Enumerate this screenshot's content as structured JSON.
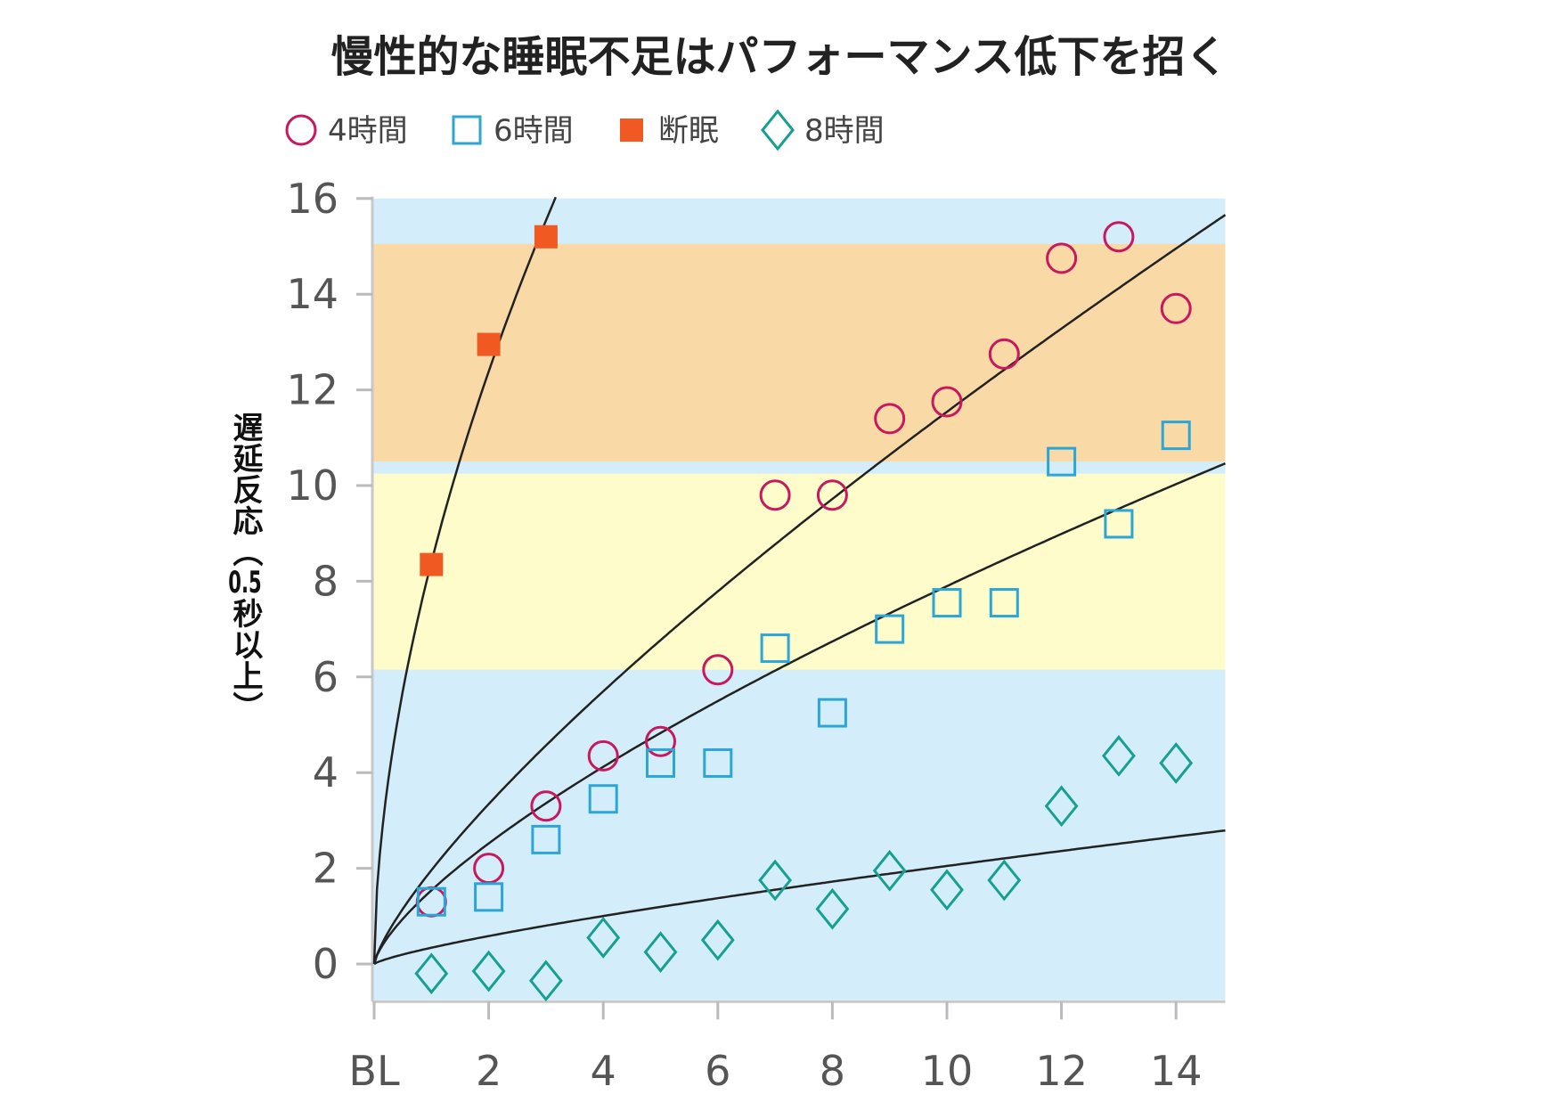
{
  "chart_data": {
    "type": "scatter",
    "title": "慢性的な睡眠不足はパフォーマンス低下を招く",
    "xlabel": "",
    "ylabel": "遅延反応（0.5秒以上）",
    "xlim": [
      0,
      14.86
    ],
    "ylim": [
      -0.75,
      16
    ],
    "x_ticks": [
      {
        "value": 0,
        "label": "BL"
      },
      {
        "value": 2,
        "label": "2"
      },
      {
        "value": 4,
        "label": "4"
      },
      {
        "value": 6,
        "label": "6"
      },
      {
        "value": 8,
        "label": "8"
      },
      {
        "value": 10,
        "label": "10"
      },
      {
        "value": 12,
        "label": "12"
      },
      {
        "value": 14,
        "label": "14"
      }
    ],
    "y_ticks": [
      0,
      2,
      4,
      6,
      8,
      10,
      12,
      14,
      16
    ],
    "legend_position": "top-left",
    "bands": [
      {
        "from": -0.75,
        "to": 16,
        "color": "#d3eefa"
      },
      {
        "from": 10.5,
        "to": 15.05,
        "color": "#f9d9a6"
      },
      {
        "from": 6.15,
        "to": 10.25,
        "color": "#fdfcca"
      }
    ],
    "series": [
      {
        "name": "4時間",
        "marker": "circle",
        "color": "#c8185e",
        "x": [
          1,
          2,
          3,
          4,
          5,
          6,
          7,
          8,
          9,
          10,
          11,
          12,
          13,
          14
        ],
        "y": [
          1.3,
          2.0,
          3.3,
          4.35,
          4.65,
          6.15,
          9.8,
          9.8,
          11.4,
          11.75,
          12.75,
          14.75,
          15.2,
          13.7
        ],
        "fit": {
          "a": 1.96,
          "b": 0.77
        }
      },
      {
        "name": "6時間",
        "marker": "square",
        "color": "#2ba6d6",
        "x": [
          1,
          2,
          3,
          4,
          5,
          6,
          7,
          8,
          9,
          10,
          11,
          12,
          13,
          14
        ],
        "y": [
          1.3,
          1.4,
          2.6,
          3.45,
          4.2,
          4.2,
          6.6,
          5.25,
          7.0,
          7.55,
          7.55,
          10.5,
          9.2,
          11.05
        ],
        "fit": {
          "a": 1.54,
          "b": 0.71
        }
      },
      {
        "name": "断眠",
        "marker": "filled-square",
        "color": "#f05a22",
        "x": [
          1,
          2,
          3
        ],
        "y": [
          8.35,
          12.95,
          15.2
        ],
        "fit": {
          "a": 8.4,
          "b": 0.56
        }
      },
      {
        "name": "8時間",
        "marker": "diamond",
        "color": "#17a08f",
        "x": [
          1,
          2,
          3,
          4,
          5,
          6,
          7,
          8,
          9,
          10,
          11,
          12,
          13,
          14
        ],
        "y": [
          -0.2,
          -0.15,
          -0.35,
          0.55,
          0.25,
          0.5,
          1.75,
          1.15,
          1.95,
          1.55,
          1.75,
          3.3,
          4.35,
          4.2
        ],
        "fit": {
          "a": 0.34,
          "b": 0.78
        }
      }
    ]
  }
}
